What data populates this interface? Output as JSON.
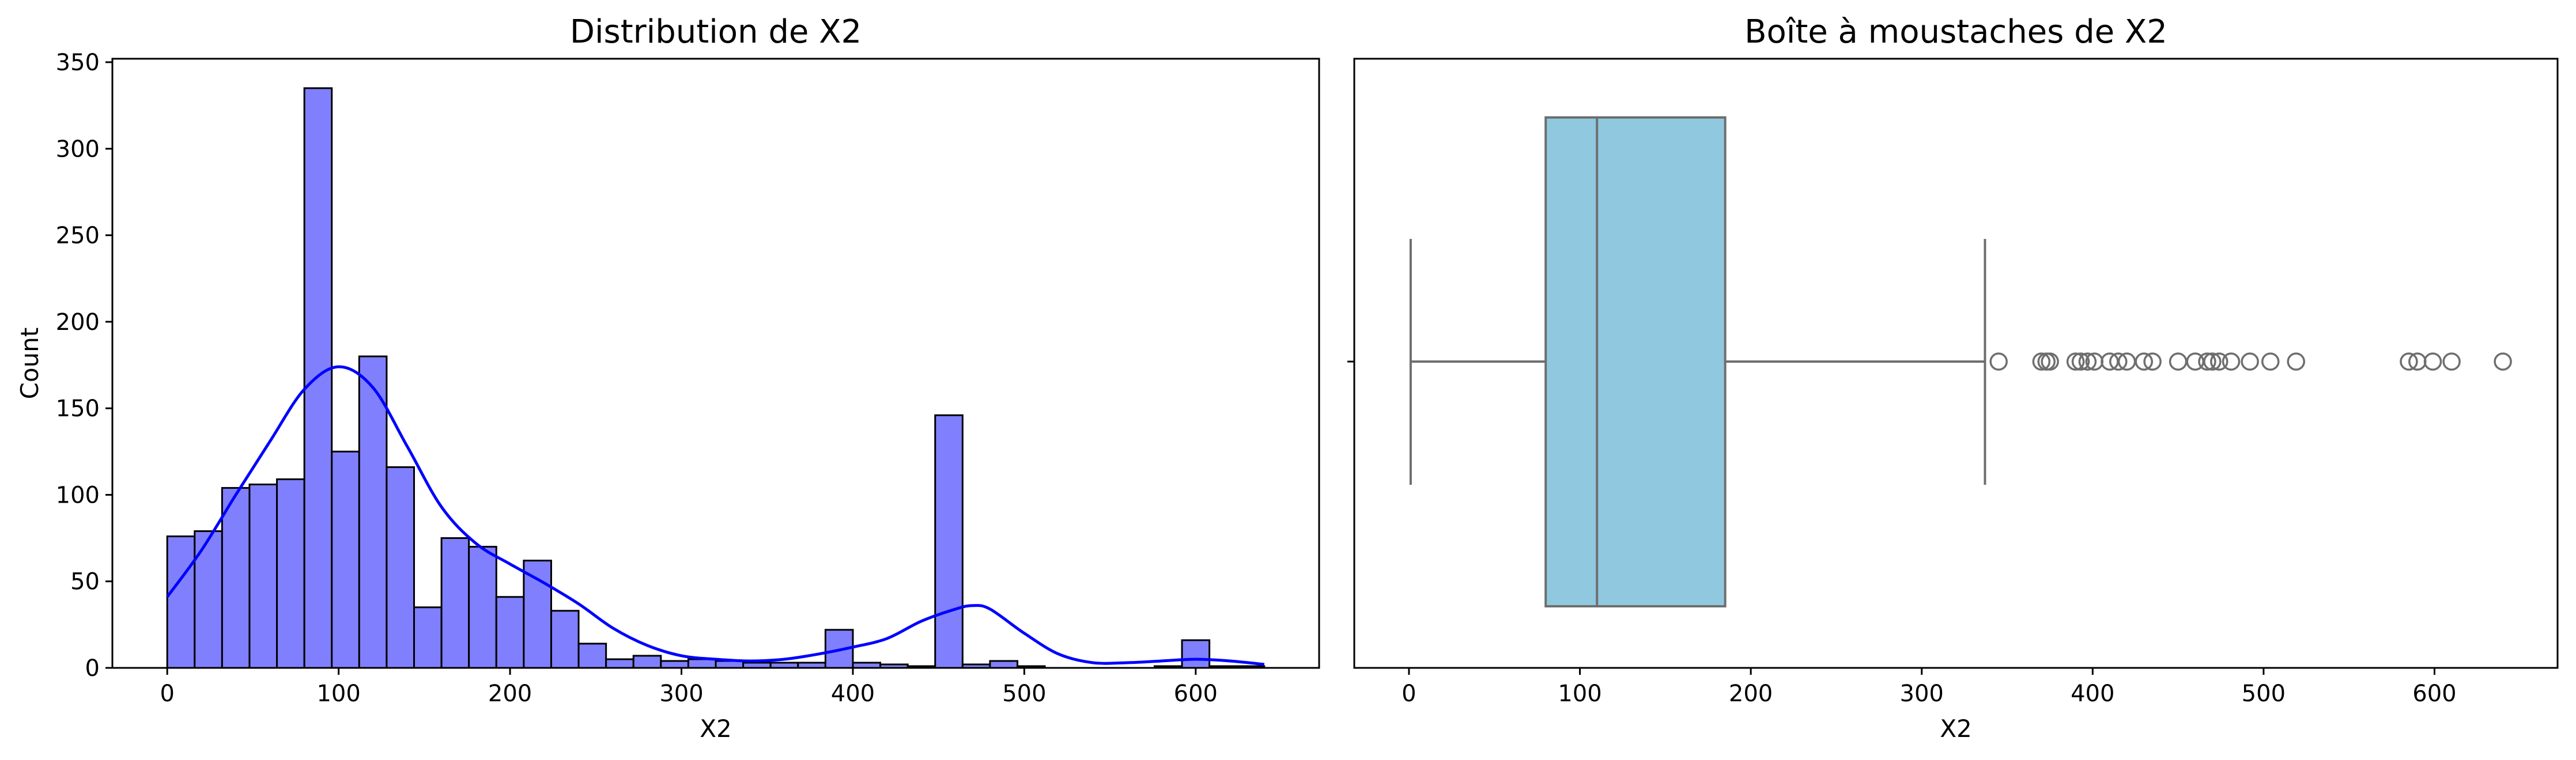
{
  "chart_data": [
    {
      "type": "bar",
      "subtype": "histogram-with-kde",
      "title": "Distribution de X2",
      "xlabel": "X2",
      "ylabel": "Count",
      "xlim": [
        -32,
        672
      ],
      "ylim": [
        0,
        352
      ],
      "xticks": [
        0,
        100,
        200,
        300,
        400,
        500,
        600
      ],
      "yticks": [
        0,
        50,
        100,
        150,
        200,
        250,
        300,
        350
      ],
      "grid": false,
      "bar_color": "#8080ff",
      "edge_color": "#000000",
      "kde_color": "#0000ff",
      "bin_edges": [
        0,
        16,
        32,
        48,
        64,
        80,
        96,
        112,
        128,
        144,
        160,
        176,
        192,
        208,
        224,
        240,
        256,
        272,
        288,
        304,
        320,
        336,
        352,
        368,
        384,
        400,
        416,
        432,
        448,
        464,
        480,
        496,
        512,
        528,
        544,
        560,
        576,
        592,
        608,
        624,
        640
      ],
      "counts": [
        76,
        79,
        104,
        106,
        109,
        335,
        125,
        180,
        116,
        35,
        75,
        70,
        41,
        62,
        33,
        14,
        5,
        7,
        4,
        5,
        4,
        3,
        3,
        3,
        22,
        3,
        2,
        1,
        146,
        2,
        4,
        1,
        0,
        0,
        0,
        0,
        1,
        16,
        1,
        1
      ],
      "kde": {
        "x": [
          0,
          20,
          40,
          60,
          80,
          100,
          120,
          140,
          160,
          180,
          200,
          220,
          240,
          260,
          280,
          300,
          320,
          340,
          360,
          380,
          400,
          420,
          440,
          460,
          470,
          480,
          500,
          520,
          540,
          560,
          580,
          600,
          620,
          640
        ],
        "y": [
          41,
          68,
          100,
          131,
          161,
          174,
          162,
          128,
          93,
          72,
          60,
          49,
          37,
          23,
          13,
          7,
          5,
          4,
          5,
          8,
          12,
          17,
          27,
          34,
          36,
          34,
          20,
          8,
          3,
          3,
          4,
          5,
          4,
          2
        ]
      }
    },
    {
      "type": "boxplot",
      "title": "Boîte à moustaches de X2",
      "xlabel": "X2",
      "xlim": [
        -32,
        672
      ],
      "xticks": [
        0,
        100,
        200,
        300,
        400,
        500,
        600
      ],
      "box_color": "#8fc8df",
      "line_color": "#6e6e6e",
      "whisker_low": 1,
      "q1": 80,
      "median": 110,
      "q3": 185,
      "whisker_high": 337,
      "outliers": [
        345,
        370,
        373,
        375,
        390,
        393,
        397,
        401,
        410,
        415,
        420,
        430,
        435,
        450,
        460,
        467,
        470,
        474,
        481,
        492,
        504,
        519,
        585,
        590,
        599,
        610,
        640
      ]
    }
  ]
}
